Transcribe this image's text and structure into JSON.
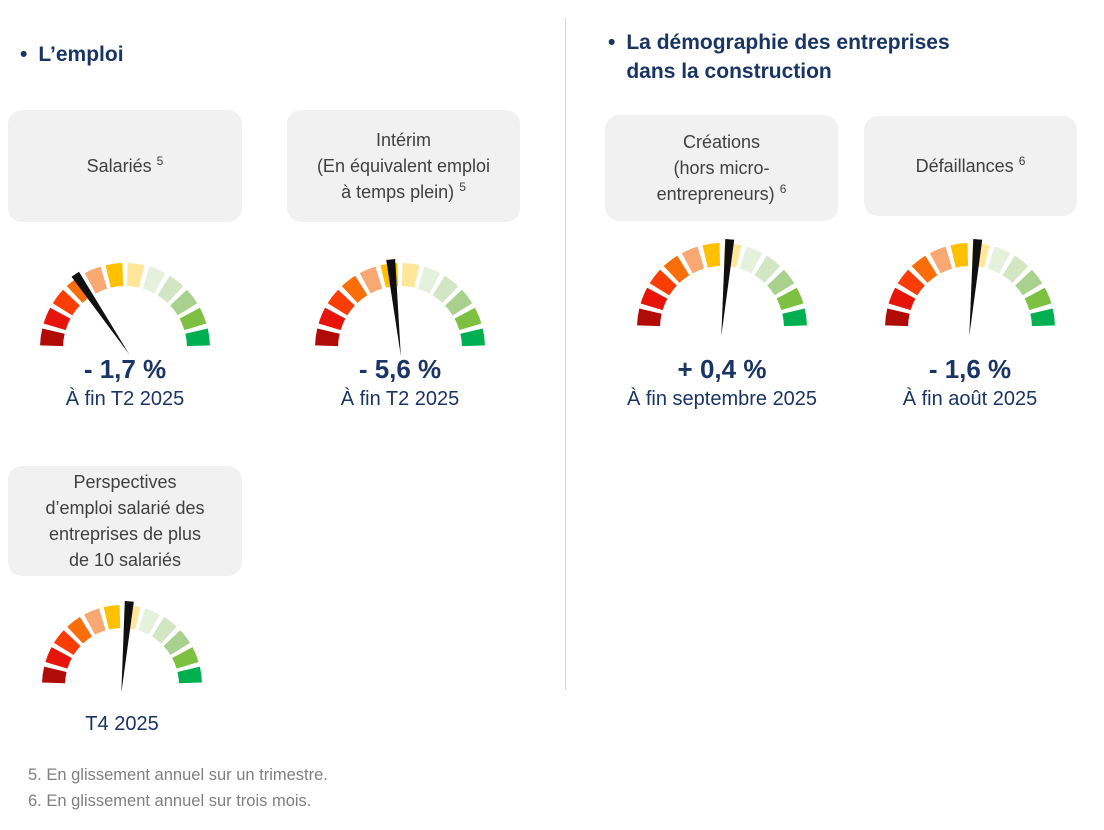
{
  "left_section": {
    "bullet": "•",
    "title": "L’emploi"
  },
  "right_section": {
    "bullet": "•",
    "title_line1": "La démographie des entreprises",
    "title_line2": "dans la construction"
  },
  "cards": [
    {
      "id": "salaries",
      "lines": [
        {
          "text": "Salariés",
          "sup": "5"
        }
      ]
    },
    {
      "id": "interim",
      "lines": [
        {
          "text": "Intérim"
        },
        {
          "text": "(En équivalent emploi"
        },
        {
          "text": "à temps plein)",
          "sup": "5"
        }
      ]
    },
    {
      "id": "perspectives",
      "lines": [
        {
          "text": "Perspectives"
        },
        {
          "text": "d’emploi salarié des"
        },
        {
          "text": "entreprises de plus"
        },
        {
          "text": "de 10 salariés"
        }
      ]
    },
    {
      "id": "creations",
      "lines": [
        {
          "text": "Créations"
        },
        {
          "text": "(hors micro-"
        },
        {
          "text": "entrepreneurs)",
          "sup": "6"
        }
      ]
    },
    {
      "id": "defaillances",
      "lines": [
        {
          "text": "Défaillances",
          "sup": "6"
        }
      ]
    }
  ],
  "gauges": [
    {
      "id": "salaries",
      "value_label": "- 1,7 %",
      "period": "À fin T2 2025",
      "needle_deg": -34
    },
    {
      "id": "interim",
      "value_label": "- 5,6 %",
      "period": "À fin T2 2025",
      "needle_deg": -6
    },
    {
      "id": "perspectives",
      "value_label": "",
      "period": "T4 2025",
      "needle_deg": 5
    },
    {
      "id": "creations",
      "value_label": "+ 0,4 %",
      "period": "À fin septembre 2025",
      "needle_deg": 5
    },
    {
      "id": "defaillances",
      "value_label": "- 1,6 %",
      "period": "À fin août 2025",
      "needle_deg": 5
    }
  ],
  "gauge_style": {
    "segment_colors": [
      "#B00B06",
      "#E6140A",
      "#FA3C05",
      "#FA6E0A",
      "#F9A871",
      "#FFC000",
      "#FFE699",
      "#E5F0DD",
      "#D2E6C3",
      "#A9D18E",
      "#7EC142",
      "#00B050"
    ],
    "needle_color": "#101010"
  },
  "footnotes": [
    "5. En glissement annuel sur un trimestre.",
    "6. En glissement annuel sur trois mois."
  ],
  "colors": {
    "accent_navy": "#1A3464",
    "card_bg": "#F1F1F1",
    "card_text": "#404040",
    "footnote_gray": "#7F7F7F",
    "divider_gray": "#D6D6D6"
  },
  "chart_data": [
    {
      "type": "gauge",
      "name": "Salariés",
      "footnote_ref": 5,
      "value_pct": -1.7,
      "value_label": "- 1,7 %",
      "period": "À fin T2 2025",
      "needle_deg_from_vertical": -34,
      "scale": "12 segments, red (left/bad) to green (right/good), 180° dial"
    },
    {
      "type": "gauge",
      "name": "Intérim (En équivalent emploi à temps plein)",
      "footnote_ref": 5,
      "value_pct": -5.6,
      "value_label": "- 5,6 %",
      "period": "À fin T2 2025",
      "needle_deg_from_vertical": -6,
      "scale": "12 segments, red (left/bad) to green (right/good), 180° dial"
    },
    {
      "type": "gauge",
      "name": "Perspectives d’emploi salarié des entreprises de plus de 10 salariés",
      "value_pct": null,
      "value_label": null,
      "period": "T4 2025",
      "needle_deg_from_vertical": 5,
      "scale": "12 segments, red (left/bad) to green (right/good), 180° dial"
    },
    {
      "type": "gauge",
      "name": "Créations (hors micro-entrepreneurs)",
      "footnote_ref": 6,
      "value_pct": 0.4,
      "value_label": "+ 0,4 %",
      "period": "À fin septembre 2025",
      "needle_deg_from_vertical": 5,
      "scale": "12 segments, red (left/bad) to green (right/good), 180° dial"
    },
    {
      "type": "gauge",
      "name": "Défaillances",
      "footnote_ref": 6,
      "value_pct": -1.6,
      "value_label": "- 1,6 %",
      "period": "À fin août 2025",
      "needle_deg_from_vertical": 5,
      "scale": "12 segments, red (left/bad) to green (right/good), 180° dial"
    }
  ]
}
